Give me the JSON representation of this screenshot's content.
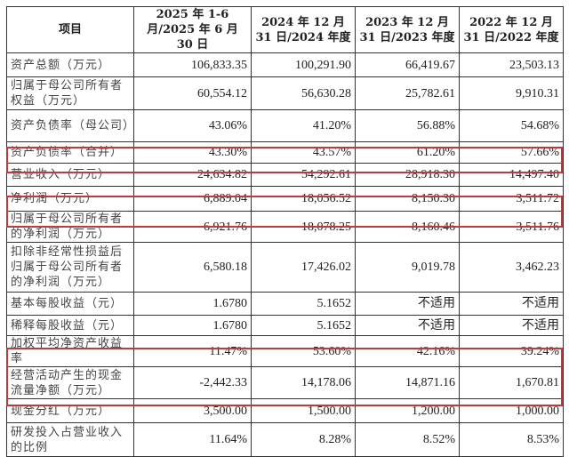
{
  "header": [
    "项目",
    "2025 年 1-6 月/2025 年 6 月 30 日",
    "2024 年 12 月 31 日/2024 年度",
    "2023 年 12 月 31 日/2023 年度",
    "2022 年 12 月 31 日/2022 年度"
  ],
  "rows": [
    {
      "label": "资产总额（万元）",
      "values": [
        "106,833.35",
        "100,291.90",
        "66,419.67",
        "23,503.13"
      ]
    },
    {
      "label": "归属于母公司所有者权益（万元）",
      "values": [
        "60,554.12",
        "56,630.28",
        "25,782.61",
        "9,910.31"
      ]
    },
    {
      "label": "资产负债率（母公司）",
      "values": [
        "43.06%",
        "41.20%",
        "56.88%",
        "54.68%"
      ]
    },
    {
      "label": "资产负债率（合并）",
      "values": [
        "43.30%",
        "43.57%",
        "61.20%",
        "57.66%"
      ]
    },
    {
      "label": "营业收入（万元）",
      "values": [
        "24,634.82",
        "54,292.61",
        "28,918.30",
        "14,497.40"
      ]
    },
    {
      "label": "净利润（万元）",
      "values": [
        "6,889.04",
        "18,056.52",
        "8,150.30",
        "3,511.72"
      ]
    },
    {
      "label": "归属于母公司所有者的净利润（万元）",
      "values": [
        "6,921.76",
        "18,078.25",
        "8,160.46",
        "3,511.76"
      ]
    },
    {
      "label": "扣除非经常性损益后归属于母公司所有者的净利润（万元）",
      "values": [
        "6,580.18",
        "17,426.02",
        "9,019.78",
        "3,462.23"
      ]
    },
    {
      "label": "基本每股收益（元）",
      "values": [
        "1.6780",
        "5.1652",
        "不适用",
        "不适用"
      ]
    },
    {
      "label": "稀释每股收益（元）",
      "values": [
        "1.6780",
        "5.1652",
        "不适用",
        "不适用"
      ]
    },
    {
      "label": "加权平均净资产收益率",
      "values": [
        "11.47%",
        "53.60%",
        "42.16%",
        "39.24%"
      ]
    },
    {
      "label": "经营活动产生的现金流量净额（万元）",
      "values": [
        "-2,442.33",
        "14,178.06",
        "14,871.16",
        "1,670.81"
      ]
    },
    {
      "label": "现金分红（万元）",
      "values": [
        "3,500.00",
        "1,500.00",
        "1,200.00",
        "1,000.00"
      ]
    },
    {
      "label": "研发投入占营业收入的比例",
      "values": [
        "11.64%",
        "8.28%",
        "8.52%",
        "8.53%"
      ]
    }
  ],
  "highlight_color": "#c0393b"
}
